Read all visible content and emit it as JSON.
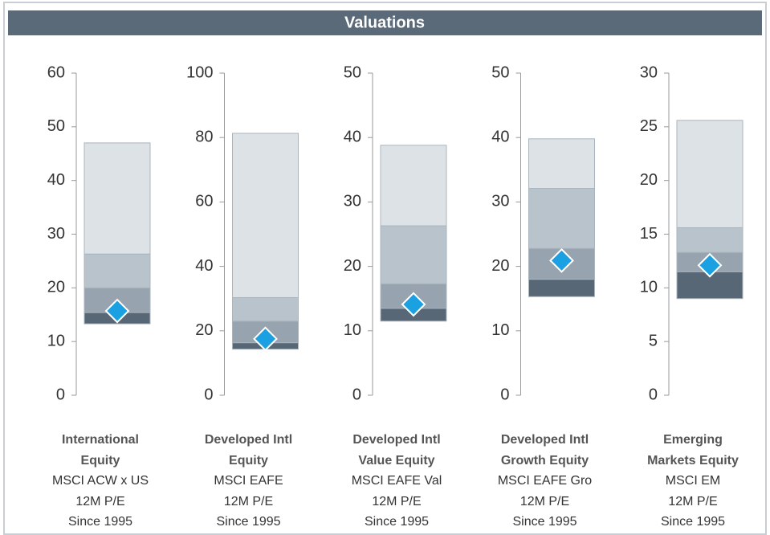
{
  "title": "Valuations",
  "chart_data": [
    {
      "type": "rangebar",
      "name": "International Equity",
      "index": "MSCI ACW x US",
      "metric": "12M P/E",
      "since": "Since 1995",
      "ylim": [
        0,
        60
      ],
      "yticks": [
        0,
        10,
        20,
        30,
        40,
        50,
        60
      ],
      "values": [
        13.3,
        15.4,
        20.0,
        26.3,
        47.0
      ],
      "current": 15.7
    },
    {
      "type": "rangebar",
      "name": "Developed Intl Equity",
      "index": "MSCI EAFE",
      "metric": "12M P/E",
      "since": "Since 1995",
      "ylim": [
        0,
        100
      ],
      "yticks": [
        0,
        20,
        40,
        60,
        80,
        100
      ],
      "values": [
        14.3,
        16.3,
        23.0,
        30.3,
        81.3
      ],
      "current": 17.5
    },
    {
      "type": "rangebar",
      "name": "Developed Intl Value Equity",
      "index": "MSCI EAFE Val",
      "metric": "12M P/E",
      "since": "Since 1995",
      "ylim": [
        0,
        50
      ],
      "yticks": [
        0,
        10,
        20,
        30,
        40,
        50
      ],
      "values": [
        11.5,
        13.5,
        17.3,
        26.3,
        38.8
      ],
      "current": 14.1
    },
    {
      "type": "rangebar",
      "name": "Developed Intl Growth Equity",
      "index": "MSCI EAFE Gro",
      "metric": "12M P/E",
      "since": "Since 1995",
      "ylim": [
        0,
        50
      ],
      "yticks": [
        0,
        10,
        20,
        30,
        40,
        50
      ],
      "values": [
        15.3,
        18.0,
        22.8,
        32.1,
        39.8
      ],
      "current": 20.9
    },
    {
      "type": "rangebar",
      "name": "Emerging Markets Equity",
      "index": "MSCI EM",
      "metric": "12M P/E",
      "since": "Since 1995",
      "ylim": [
        0,
        30
      ],
      "yticks": [
        0,
        5,
        10,
        15,
        20,
        25,
        30
      ],
      "values": [
        9.0,
        11.5,
        13.3,
        15.6,
        25.6
      ],
      "current": 12.1
    }
  ],
  "segment_colors": [
    "#586776",
    "#97a3ae",
    "#b9c3cc",
    "#dde2e7"
  ],
  "current_color": "#1ba1e2"
}
